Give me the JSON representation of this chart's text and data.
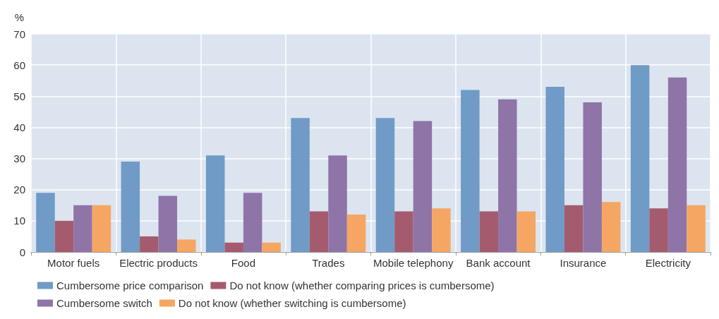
{
  "chart_data": {
    "type": "bar",
    "ylabel": "%",
    "categories": [
      "Motor fuels",
      "Electric products",
      "Food",
      "Trades",
      "Mobile telephony",
      "Bank account",
      "Insurance",
      "Electricity"
    ],
    "series": [
      {
        "name": "Cumbersome price comparison",
        "color": "#6f9bc6",
        "values": [
          19,
          29,
          31,
          43,
          43,
          52,
          53,
          60
        ]
      },
      {
        "name": "Do not know (whether comparing prices is cumbersome)",
        "color": "#a55b6e",
        "values": [
          10,
          5,
          3,
          13,
          13,
          13,
          15,
          14
        ]
      },
      {
        "name": "Cumbersome switch",
        "color": "#8f74a8",
        "values": [
          15,
          18,
          19,
          31,
          42,
          49,
          48,
          56
        ]
      },
      {
        "name": "Do not know (whether switching is cumbersome)",
        "color": "#f5a663",
        "values": [
          15,
          4,
          3,
          12,
          14,
          13,
          16,
          15
        ]
      }
    ],
    "ylim": [
      0,
      70
    ],
    "yticks": [
      0,
      10,
      20,
      30,
      40,
      50,
      60,
      70
    ],
    "grid": true,
    "legend": "bottom"
  }
}
